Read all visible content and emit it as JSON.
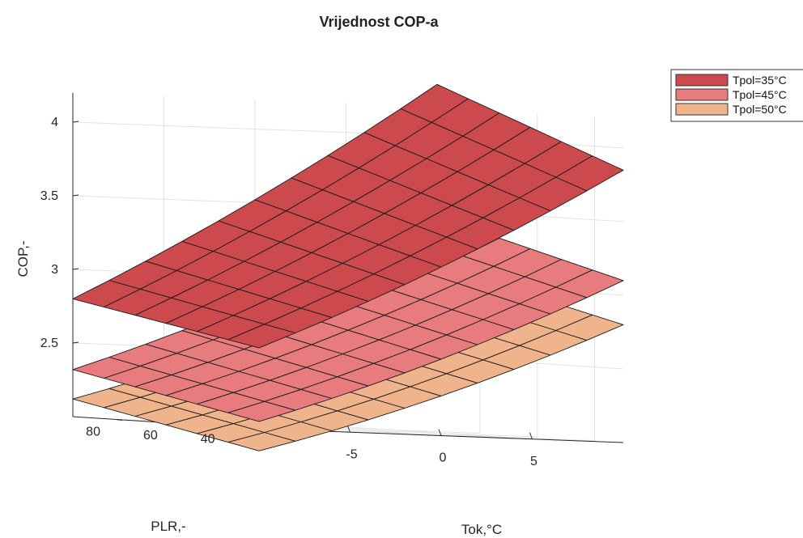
{
  "chart_data": {
    "type": "surface3d",
    "title": "Vrijednost COP-a",
    "xlabel": "Tok,°C",
    "ylabel": "PLR,-",
    "zlabel": "COP,-",
    "x_ticks": [
      -5,
      0,
      5
    ],
    "y_ticks": [
      40,
      60,
      80
    ],
    "z_ticks": [
      2.5,
      3,
      3.5,
      4
    ],
    "xlim": [
      -10,
      10
    ],
    "ylim": [
      30,
      95
    ],
    "zlim": [
      2.0,
      4.2
    ],
    "grid": true,
    "legend_position": "top-right",
    "colors": {
      "Tpol=35°C": "#cc4a4e",
      "Tpol=45°C": "#e87b7d",
      "Tpol=50°C": "#f0b48c"
    },
    "series": [
      {
        "name": "Tpol=35°C",
        "x": [
          -10,
          10
        ],
        "y": [
          30,
          95
        ],
        "corner_z": {
          "x_min_y_min": 2.55,
          "x_min_y_max": 2.8,
          "x_max_y_min": 3.85,
          "x_max_y_max": 4.35
        }
      },
      {
        "name": "Tpol=45°C",
        "x": [
          -10,
          10
        ],
        "y": [
          30,
          95
        ],
        "corner_z": {
          "x_min_y_min": 2.05,
          "x_min_y_max": 2.32,
          "x_max_y_min": 3.1,
          "x_max_y_max": 3.45
        }
      },
      {
        "name": "Tpol=50°C",
        "x": [
          -10,
          10
        ],
        "y": [
          30,
          95
        ],
        "corner_z": {
          "x_min_y_min": 1.85,
          "x_min_y_max": 2.12,
          "x_max_y_min": 2.8,
          "x_max_y_max": 3.12
        }
      }
    ]
  }
}
